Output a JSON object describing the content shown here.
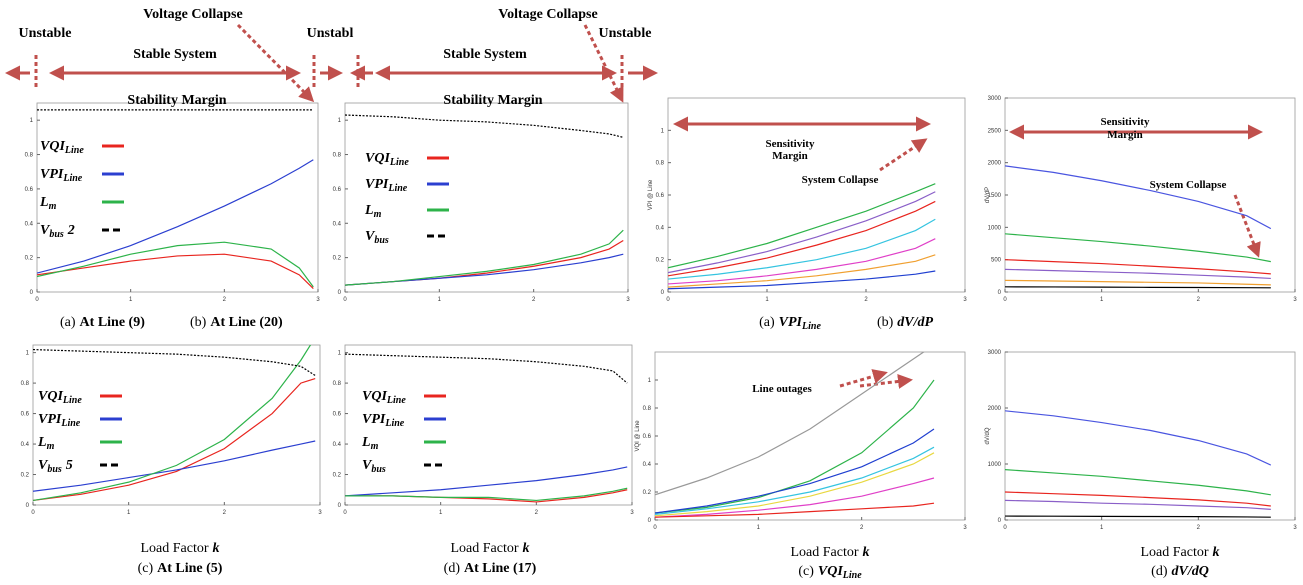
{
  "chart_data": [
    {
      "type": "line",
      "x": [
        0,
        0.5,
        1,
        1.5,
        2,
        2.5,
        2.8,
        2.95
      ],
      "xlim": [
        0,
        3
      ],
      "ylim": [
        0,
        1.1
      ],
      "xticks": [
        0,
        1,
        2,
        3
      ],
      "yticks": [
        0,
        0.2,
        0.4,
        0.6,
        0.8,
        1
      ],
      "legend": true,
      "series": [
        {
          "name": "VQI",
          "sub": "Line",
          "color": "#e8251f",
          "values": [
            0.1,
            0.14,
            0.18,
            0.21,
            0.22,
            0.18,
            0.1,
            0.02
          ]
        },
        {
          "name": "VPI",
          "sub": "Line",
          "color": "#2b3fd0",
          "values": [
            0.11,
            0.18,
            0.27,
            0.38,
            0.5,
            0.63,
            0.72,
            0.77
          ]
        },
        {
          "name": "L",
          "sub": "m",
          "color": "#2db34a",
          "values": [
            0.09,
            0.15,
            0.22,
            0.27,
            0.29,
            0.25,
            0.14,
            0.03
          ]
        },
        {
          "name": "V",
          "sub": "bus",
          "suffix": "2",
          "color": "#000000",
          "dash": true,
          "values": [
            1.06,
            1.06,
            1.06,
            1.06,
            1.06,
            1.06,
            1.06,
            1.06
          ]
        }
      ],
      "annotations": [
        "Unstable",
        "Stable System",
        "Voltage Collapse",
        "Stability Margin",
        "Unstabl"
      ],
      "caption": {
        "label": "(a)",
        "text": "At Line (9)"
      }
    },
    {
      "type": "line",
      "x": [
        0,
        0.5,
        1,
        1.5,
        2,
        2.5,
        2.8,
        2.95
      ],
      "xlim": [
        0,
        3
      ],
      "ylim": [
        0,
        1.1
      ],
      "xticks": [
        0,
        1,
        2,
        3
      ],
      "yticks": [
        0,
        0.2,
        0.4,
        0.6,
        0.8,
        1
      ],
      "legend": true,
      "series": [
        {
          "name": "VQI",
          "sub": "Line",
          "color": "#e8251f",
          "values": [
            0.04,
            0.06,
            0.08,
            0.11,
            0.15,
            0.2,
            0.25,
            0.3
          ]
        },
        {
          "name": "VPI",
          "sub": "Line",
          "color": "#2b3fd0",
          "values": [
            0.04,
            0.06,
            0.08,
            0.1,
            0.13,
            0.17,
            0.2,
            0.22
          ]
        },
        {
          "name": "L",
          "sub": "m",
          "color": "#2db34a",
          "values": [
            0.04,
            0.06,
            0.09,
            0.12,
            0.16,
            0.22,
            0.28,
            0.36
          ]
        },
        {
          "name": "V",
          "sub": "bus",
          "color": "#000000",
          "dash": true,
          "values": [
            1.03,
            1.02,
            1.0,
            0.99,
            0.97,
            0.94,
            0.92,
            0.9
          ]
        }
      ],
      "annotations": [
        "Stable System",
        "Voltage Collapse",
        "Unstable",
        "Stability Margin"
      ],
      "caption": {
        "label": "(b)",
        "text": "At Line (20)"
      }
    },
    {
      "type": "line",
      "x": [
        0,
        0.5,
        1,
        1.5,
        2,
        2.5,
        2.8,
        2.95
      ],
      "xlim": [
        0,
        3
      ],
      "ylim": [
        0,
        1.05
      ],
      "xticks": [
        0,
        1,
        2,
        3
      ],
      "yticks": [
        0,
        0.2,
        0.4,
        0.6,
        0.8,
        1
      ],
      "legend": true,
      "series": [
        {
          "name": "VQI",
          "sub": "Line",
          "color": "#e8251f",
          "values": [
            0.03,
            0.07,
            0.13,
            0.22,
            0.37,
            0.6,
            0.8,
            0.83
          ]
        },
        {
          "name": "VPI",
          "sub": "Line",
          "color": "#2b3fd0",
          "values": [
            0.09,
            0.13,
            0.18,
            0.23,
            0.29,
            0.36,
            0.4,
            0.42
          ]
        },
        {
          "name": "L",
          "sub": "m",
          "color": "#2db34a",
          "values": [
            0.03,
            0.08,
            0.15,
            0.26,
            0.43,
            0.7,
            0.95,
            1.1
          ]
        },
        {
          "name": "V",
          "sub": "bus",
          "suffix": "5",
          "color": "#000000",
          "dash": true,
          "values": [
            1.02,
            1.01,
            1.0,
            0.99,
            0.97,
            0.94,
            0.91,
            0.85
          ]
        }
      ],
      "xlabel": "Load Factor",
      "xvar": "k",
      "caption": {
        "label": "(c)",
        "text": "At Line (5)"
      }
    },
    {
      "type": "line",
      "x": [
        0,
        0.5,
        1,
        1.5,
        2,
        2.5,
        2.8,
        2.95
      ],
      "xlim": [
        0,
        3
      ],
      "ylim": [
        0,
        1.05
      ],
      "xticks": [
        0,
        1,
        2,
        3
      ],
      "yticks": [
        0,
        0.2,
        0.4,
        0.6,
        0.8,
        1
      ],
      "legend": true,
      "series": [
        {
          "name": "VQI",
          "sub": "Line",
          "color": "#e8251f",
          "values": [
            0.06,
            0.06,
            0.05,
            0.04,
            0.02,
            0.05,
            0.08,
            0.1
          ]
        },
        {
          "name": "VPI",
          "sub": "Line",
          "color": "#2b3fd0",
          "values": [
            0.06,
            0.08,
            0.1,
            0.13,
            0.16,
            0.2,
            0.23,
            0.25
          ]
        },
        {
          "name": "L",
          "sub": "m",
          "color": "#2db34a",
          "values": [
            0.06,
            0.06,
            0.05,
            0.05,
            0.03,
            0.06,
            0.09,
            0.11
          ]
        },
        {
          "name": "V",
          "sub": "bus",
          "color": "#000000",
          "dash": true,
          "values": [
            0.99,
            0.98,
            0.97,
            0.96,
            0.94,
            0.91,
            0.88,
            0.8
          ]
        }
      ],
      "xlabel": "Load Factor",
      "xvar": "k",
      "caption": {
        "label": "(d)",
        "text": "At Line (17)"
      }
    },
    {
      "type": "line",
      "x": [
        0,
        0.5,
        1,
        1.5,
        2,
        2.5,
        2.7
      ],
      "xlim": [
        0,
        3
      ],
      "ylim": [
        0,
        1.2
      ],
      "xticks": [
        0,
        1,
        2,
        3
      ],
      "yticks": [
        0,
        0.2,
        0.4,
        0.6,
        0.8,
        1
      ],
      "ylabel": "VPI @ Line",
      "series": [
        {
          "color": "#2db34a",
          "values": [
            0.15,
            0.22,
            0.3,
            0.4,
            0.5,
            0.62,
            0.67
          ]
        },
        {
          "color": "#8a5fc8",
          "values": [
            0.12,
            0.18,
            0.25,
            0.34,
            0.44,
            0.56,
            0.62
          ]
        },
        {
          "color": "#e8251f",
          "values": [
            0.1,
            0.15,
            0.21,
            0.29,
            0.38,
            0.5,
            0.56
          ]
        },
        {
          "color": "#35c4e0",
          "values": [
            0.08,
            0.11,
            0.15,
            0.2,
            0.27,
            0.38,
            0.45
          ]
        },
        {
          "color": "#e040c8",
          "values": [
            0.05,
            0.07,
            0.1,
            0.14,
            0.19,
            0.27,
            0.33
          ]
        },
        {
          "color": "#f0a030",
          "values": [
            0.03,
            0.05,
            0.07,
            0.1,
            0.14,
            0.19,
            0.23
          ]
        },
        {
          "color": "#1f3fd0",
          "values": [
            0.02,
            0.03,
            0.04,
            0.06,
            0.08,
            0.11,
            0.13
          ]
        }
      ],
      "annotations": [
        "Sensitivity",
        "Margin",
        "System Collapse"
      ],
      "caption": {
        "label": "(a)",
        "text": "VPI",
        "sub": "Line"
      }
    },
    {
      "type": "line",
      "x": [
        0,
        0.5,
        1,
        1.5,
        2,
        2.5,
        2.75
      ],
      "xlim": [
        0,
        3
      ],
      "ylim": [
        0,
        3000
      ],
      "xticks": [
        0,
        1,
        2,
        3
      ],
      "yticks": [
        0,
        500,
        1000,
        1500,
        2000,
        2500,
        3000
      ],
      "ylabel": "dV/dP",
      "series": [
        {
          "color": "#4a55e0",
          "values": [
            1950,
            1850,
            1720,
            1570,
            1400,
            1180,
            980
          ]
        },
        {
          "color": "#2db34a",
          "values": [
            900,
            840,
            780,
            710,
            630,
            540,
            470
          ]
        },
        {
          "color": "#e8251f",
          "values": [
            500,
            470,
            440,
            400,
            360,
            310,
            280
          ]
        },
        {
          "color": "#8a5fc8",
          "values": [
            350,
            330,
            310,
            290,
            260,
            230,
            210
          ]
        },
        {
          "color": "#f0a030",
          "values": [
            180,
            170,
            160,
            150,
            140,
            120,
            110
          ]
        },
        {
          "color": "#000000",
          "values": [
            80,
            78,
            75,
            72,
            70,
            67,
            65
          ]
        }
      ],
      "annotations": [
        "Sensitivity",
        "Margin",
        "System Collapse"
      ],
      "caption": {
        "label": "(b)",
        "text": "dV/dP"
      }
    },
    {
      "type": "line",
      "x": [
        0,
        0.5,
        1,
        1.5,
        2,
        2.5,
        2.7
      ],
      "xlim": [
        0,
        3
      ],
      "ylim": [
        0,
        1.2
      ],
      "xticks": [
        0,
        1,
        2,
        3
      ],
      "yticks": [
        0,
        0.2,
        0.4,
        0.6,
        0.8,
        1
      ],
      "ylabel": "VQI @ Line",
      "series": [
        {
          "color": "#999999",
          "values": [
            0.18,
            0.3,
            0.45,
            0.65,
            0.9,
            1.15,
            1.25
          ]
        },
        {
          "color": "#2db34a",
          "values": [
            0.05,
            0.09,
            0.16,
            0.28,
            0.48,
            0.8,
            1.0
          ]
        },
        {
          "color": "#1f3fd0",
          "values": [
            0.05,
            0.1,
            0.17,
            0.26,
            0.38,
            0.55,
            0.65
          ]
        },
        {
          "color": "#35c4e0",
          "values": [
            0.04,
            0.08,
            0.13,
            0.2,
            0.3,
            0.44,
            0.52
          ]
        },
        {
          "color": "#e8d840",
          "values": [
            0.03,
            0.06,
            0.1,
            0.17,
            0.27,
            0.4,
            0.48
          ]
        },
        {
          "color": "#e040c8",
          "values": [
            0.02,
            0.04,
            0.07,
            0.11,
            0.17,
            0.26,
            0.3
          ]
        },
        {
          "color": "#e8251f",
          "values": [
            0.02,
            0.03,
            0.04,
            0.06,
            0.08,
            0.1,
            0.12
          ]
        }
      ],
      "annotations": [
        "Line outages"
      ],
      "xlabel": "Load Factor",
      "xvar": "k",
      "caption": {
        "label": "(c)",
        "text": "VQI",
        "sub": "Line"
      }
    },
    {
      "type": "line",
      "x": [
        0,
        0.5,
        1,
        1.5,
        2,
        2.5,
        2.75
      ],
      "xlim": [
        0,
        3
      ],
      "ylim": [
        0,
        3000
      ],
      "xticks": [
        0,
        1,
        2,
        3
      ],
      "yticks": [
        0,
        1000,
        2000,
        3000
      ],
      "ylabel": "dV/dQ",
      "series": [
        {
          "color": "#4a55e0",
          "values": [
            1950,
            1860,
            1740,
            1600,
            1420,
            1180,
            980
          ]
        },
        {
          "color": "#2db34a",
          "values": [
            900,
            840,
            780,
            700,
            620,
            520,
            450
          ]
        },
        {
          "color": "#e8251f",
          "values": [
            500,
            470,
            440,
            400,
            360,
            300,
            250
          ]
        },
        {
          "color": "#8a5fc8",
          "values": [
            350,
            330,
            300,
            280,
            250,
            220,
            190
          ]
        },
        {
          "color": "#000000",
          "values": [
            70,
            68,
            65,
            62,
            60,
            55,
            50
          ]
        }
      ],
      "xlabel": "Load Factor",
      "xvar": "k",
      "caption": {
        "label": "(d)",
        "text": "dV/dQ"
      }
    }
  ]
}
